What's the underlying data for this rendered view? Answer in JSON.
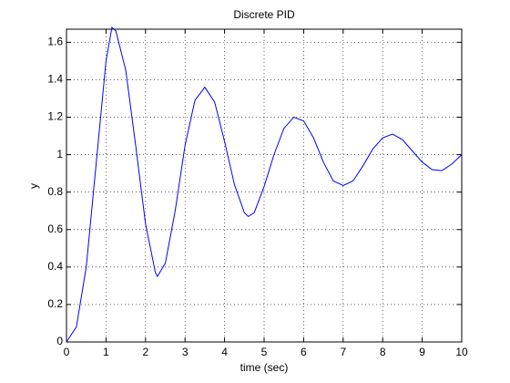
{
  "chart_data": {
    "type": "line",
    "title": "Discrete PID",
    "x_label": "time (sec)",
    "y_label": "y",
    "x": [
      0,
      0.25,
      0.5,
      0.75,
      1.0,
      1.15,
      1.25,
      1.5,
      1.75,
      2.0,
      2.25,
      2.3,
      2.5,
      2.75,
      3.0,
      3.25,
      3.5,
      3.75,
      4.0,
      4.25,
      4.5,
      4.6,
      4.75,
      5.0,
      5.25,
      5.5,
      5.75,
      6.0,
      6.25,
      6.5,
      6.75,
      7.0,
      7.25,
      7.5,
      7.75,
      8.0,
      8.25,
      8.5,
      8.75,
      9.0,
      9.25,
      9.5,
      9.75,
      10
    ],
    "series": [
      {
        "name": "y",
        "color": "#0000ff",
        "values": [
          0,
          0.08,
          0.4,
          0.95,
          1.5,
          1.68,
          1.66,
          1.45,
          1.05,
          0.63,
          0.37,
          0.35,
          0.42,
          0.7,
          1.05,
          1.29,
          1.36,
          1.28,
          1.07,
          0.84,
          0.69,
          0.67,
          0.69,
          0.83,
          1.0,
          1.14,
          1.2,
          1.18,
          1.09,
          0.96,
          0.86,
          0.835,
          0.86,
          0.94,
          1.03,
          1.09,
          1.11,
          1.08,
          1.02,
          0.96,
          0.92,
          0.915,
          0.95,
          1.0
        ]
      }
    ],
    "xlim": [
      0,
      10
    ],
    "ylim": [
      0,
      1.67
    ],
    "xticks": [
      0,
      1,
      2,
      3,
      4,
      5,
      6,
      7,
      8,
      9,
      10
    ],
    "yticks": [
      0,
      0.2,
      0.4,
      0.6,
      0.8,
      1,
      1.2,
      1.4,
      1.6
    ],
    "grid": true
  }
}
